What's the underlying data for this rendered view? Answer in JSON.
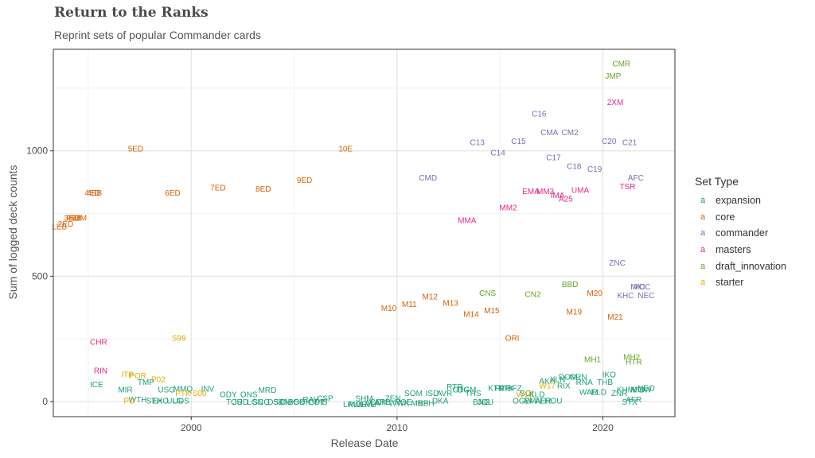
{
  "chart_data": {
    "type": "scatter",
    "title": "Return to the Ranks",
    "subtitle": "Reprint sets of popular Commander cards",
    "xlabel": "Release Date",
    "ylabel": "Sum of logged deck counts",
    "xlim": [
      1993.3,
      2023.5
    ],
    "ylim": [
      -60,
      1405
    ],
    "x_ticks": [
      2000,
      2010,
      2020
    ],
    "y_ticks": [
      0,
      500,
      1000
    ],
    "grid": true,
    "legend_title": "Set Type",
    "legend_position": "right",
    "series": [
      {
        "name": "expansion",
        "color": "#1b9e77",
        "points": [
          {
            "label": "ICE",
            "x": 1995.4,
            "y": 70
          },
          {
            "label": "MIR",
            "x": 1996.8,
            "y": 50
          },
          {
            "label": "TMP",
            "x": 1997.8,
            "y": 80
          },
          {
            "label": "WTH",
            "x": 1997.4,
            "y": 10
          },
          {
            "label": "STH",
            "x": 1998.2,
            "y": 5
          },
          {
            "label": "EXO",
            "x": 1998.5,
            "y": 5
          },
          {
            "label": "USG",
            "x": 1998.8,
            "y": 50
          },
          {
            "label": "ULG",
            "x": 1999.2,
            "y": 5
          },
          {
            "label": "UDS",
            "x": 1999.5,
            "y": 5
          },
          {
            "label": "MMQ",
            "x": 1999.6,
            "y": 52
          },
          {
            "label": "INV",
            "x": 2000.8,
            "y": 52
          },
          {
            "label": "ODY",
            "x": 2001.8,
            "y": 30
          },
          {
            "label": "ONS",
            "x": 2002.8,
            "y": 30
          },
          {
            "label": "TOR",
            "x": 2002.1,
            "y": 0
          },
          {
            "label": "JUD",
            "x": 2002.4,
            "y": 0
          },
          {
            "label": "LGN",
            "x": 2003.1,
            "y": 0
          },
          {
            "label": "SCG",
            "x": 2003.4,
            "y": 0
          },
          {
            "label": "MRD",
            "x": 2003.7,
            "y": 48
          },
          {
            "label": "DST",
            "x": 2004.1,
            "y": 0
          },
          {
            "label": "5DN",
            "x": 2004.4,
            "y": 0
          },
          {
            "label": "CHK",
            "x": 2004.7,
            "y": 0
          },
          {
            "label": "BOK",
            "x": 2005.1,
            "y": 0
          },
          {
            "label": "SOK",
            "x": 2005.4,
            "y": 0
          },
          {
            "label": "RAV",
            "x": 2005.8,
            "y": 10
          },
          {
            "label": "GPT",
            "x": 2006.1,
            "y": 0
          },
          {
            "label": "DIS",
            "x": 2006.3,
            "y": 0
          },
          {
            "label": "CSP",
            "x": 2006.5,
            "y": 15
          },
          {
            "label": "LRW",
            "x": 2007.8,
            "y": -10
          },
          {
            "label": "MOR",
            "x": 2008.1,
            "y": -10
          },
          {
            "label": "SHM",
            "x": 2008.4,
            "y": 15
          },
          {
            "label": "EVE",
            "x": 2008.6,
            "y": -10
          },
          {
            "label": "ALA",
            "x": 2008.8,
            "y": -5
          },
          {
            "label": "CON",
            "x": 2009.1,
            "y": 0
          },
          {
            "label": "ARB",
            "x": 2009.3,
            "y": 0
          },
          {
            "label": "ZEN",
            "x": 2009.8,
            "y": 15
          },
          {
            "label": "WWK",
            "x": 2010.1,
            "y": -5
          },
          {
            "label": "ROE",
            "x": 2010.3,
            "y": 0
          },
          {
            "label": "SOM",
            "x": 2010.8,
            "y": 35
          },
          {
            "label": "MBS",
            "x": 2011.1,
            "y": -5
          },
          {
            "label": "NPH",
            "x": 2011.4,
            "y": -5
          },
          {
            "label": "ISD",
            "x": 2011.7,
            "y": 35
          },
          {
            "label": "DKA",
            "x": 2012.1,
            "y": 5
          },
          {
            "label": "AVR",
            "x": 2012.3,
            "y": 35
          },
          {
            "label": "RTR",
            "x": 2012.8,
            "y": 60
          },
          {
            "label": "GTC",
            "x": 2013.1,
            "y": 50
          },
          {
            "label": "DGM",
            "x": 2013.4,
            "y": 50
          },
          {
            "label": "THS",
            "x": 2013.7,
            "y": 35
          },
          {
            "label": "BNG",
            "x": 2014.1,
            "y": 0
          },
          {
            "label": "JOU",
            "x": 2014.3,
            "y": 0
          },
          {
            "label": "KTK",
            "x": 2014.8,
            "y": 55
          },
          {
            "label": "FRF",
            "x": 2015.1,
            "y": 55
          },
          {
            "label": "DTK",
            "x": 2015.3,
            "y": 55
          },
          {
            "label": "BFZ",
            "x": 2015.7,
            "y": 55
          },
          {
            "label": "OGW",
            "x": 2016.1,
            "y": 5
          },
          {
            "label": "SOI",
            "x": 2016.3,
            "y": 35
          },
          {
            "label": "EMN",
            "x": 2016.6,
            "y": 5
          },
          {
            "label": "KLD",
            "x": 2016.8,
            "y": 30
          },
          {
            "label": "AER",
            "x": 2017.1,
            "y": 5
          },
          {
            "label": "AKH",
            "x": 2017.3,
            "y": 85
          },
          {
            "label": "HOU",
            "x": 2017.6,
            "y": 5
          },
          {
            "label": "XLN",
            "x": 2017.8,
            "y": 90
          },
          {
            "label": "RIX",
            "x": 2018.1,
            "y": 65
          },
          {
            "label": "DOM",
            "x": 2018.3,
            "y": 100
          },
          {
            "label": "GRN",
            "x": 2018.8,
            "y": 100
          },
          {
            "label": "RNA",
            "x": 2019.1,
            "y": 80
          },
          {
            "label": "WAR",
            "x": 2019.3,
            "y": 40
          },
          {
            "label": "ELD",
            "x": 2019.8,
            "y": 40
          },
          {
            "label": "THB",
            "x": 2020.1,
            "y": 80
          },
          {
            "label": "IKO",
            "x": 2020.3,
            "y": 110
          },
          {
            "label": "ZNR",
            "x": 2020.8,
            "y": 35
          },
          {
            "label": "KHM",
            "x": 2021.1,
            "y": 50
          },
          {
            "label": "STX",
            "x": 2021.3,
            "y": 0
          },
          {
            "label": "AFR",
            "x": 2021.5,
            "y": 10
          },
          {
            "label": "MID",
            "x": 2021.7,
            "y": 50
          },
          {
            "label": "VOW",
            "x": 2021.9,
            "y": 50
          },
          {
            "label": "NEO",
            "x": 2022.1,
            "y": 55
          }
        ]
      },
      {
        "name": "core",
        "color": "#d95f02",
        "points": [
          {
            "label": "LEB",
            "x": 1993.6,
            "y": 700
          },
          {
            "label": "2ED",
            "x": 1993.9,
            "y": 710
          },
          {
            "label": "3ED",
            "x": 1994.2,
            "y": 735
          },
          {
            "label": "FBB",
            "x": 1994.3,
            "y": 735
          },
          {
            "label": "SUM",
            "x": 1994.5,
            "y": 735
          },
          {
            "label": "4ED",
            "x": 1995.2,
            "y": 835
          },
          {
            "label": "4BB",
            "x": 1995.3,
            "y": 835
          },
          {
            "label": "5ED",
            "x": 1997.3,
            "y": 1010
          },
          {
            "label": "6ED",
            "x": 1999.1,
            "y": 835
          },
          {
            "label": "7ED",
            "x": 2001.3,
            "y": 855
          },
          {
            "label": "8ED",
            "x": 2003.5,
            "y": 850
          },
          {
            "label": "9ED",
            "x": 2005.5,
            "y": 885
          },
          {
            "label": "10E",
            "x": 2007.5,
            "y": 1010
          },
          {
            "label": "M10",
            "x": 2009.6,
            "y": 375
          },
          {
            "label": "M11",
            "x": 2010.6,
            "y": 390
          },
          {
            "label": "M12",
            "x": 2011.6,
            "y": 420
          },
          {
            "label": "M13",
            "x": 2012.6,
            "y": 395
          },
          {
            "label": "M14",
            "x": 2013.6,
            "y": 350
          },
          {
            "label": "M15",
            "x": 2014.6,
            "y": 365
          },
          {
            "label": "ORI",
            "x": 2015.6,
            "y": 255
          },
          {
            "label": "M19",
            "x": 2018.6,
            "y": 360
          },
          {
            "label": "M20",
            "x": 2019.6,
            "y": 435
          },
          {
            "label": "M21",
            "x": 2020.6,
            "y": 340
          }
        ]
      },
      {
        "name": "commander",
        "color": "#7570b3",
        "points": [
          {
            "label": "CMD",
            "x": 2011.5,
            "y": 895
          },
          {
            "label": "C13",
            "x": 2013.9,
            "y": 1035
          },
          {
            "label": "C14",
            "x": 2014.9,
            "y": 995
          },
          {
            "label": "C15",
            "x": 2015.9,
            "y": 1040
          },
          {
            "label": "C16",
            "x": 2016.9,
            "y": 1150
          },
          {
            "label": "CMA",
            "x": 2017.4,
            "y": 1075
          },
          {
            "label": "CM2",
            "x": 2018.4,
            "y": 1075
          },
          {
            "label": "C17",
            "x": 2017.6,
            "y": 975
          },
          {
            "label": "C18",
            "x": 2018.6,
            "y": 940
          },
          {
            "label": "C19",
            "x": 2019.6,
            "y": 930
          },
          {
            "label": "C20",
            "x": 2020.3,
            "y": 1040
          },
          {
            "label": "C21",
            "x": 2021.3,
            "y": 1035
          },
          {
            "label": "AFC",
            "x": 2021.6,
            "y": 895
          },
          {
            "label": "ZNC",
            "x": 2020.7,
            "y": 555
          },
          {
            "label": "KHC",
            "x": 2021.1,
            "y": 425
          },
          {
            "label": "MIC",
            "x": 2021.7,
            "y": 460
          },
          {
            "label": "VOC",
            "x": 2021.9,
            "y": 460
          },
          {
            "label": "NEC",
            "x": 2022.1,
            "y": 425
          }
        ]
      },
      {
        "name": "masters",
        "color": "#e7298a",
        "points": [
          {
            "label": "CHR",
            "x": 1995.5,
            "y": 240
          },
          {
            "label": "RIN",
            "x": 1995.6,
            "y": 125
          },
          {
            "label": "MMA",
            "x": 2013.4,
            "y": 725
          },
          {
            "label": "MM2",
            "x": 2015.4,
            "y": 775
          },
          {
            "label": "EMA",
            "x": 2016.5,
            "y": 840
          },
          {
            "label": "MM3",
            "x": 2017.2,
            "y": 840
          },
          {
            "label": "IMA",
            "x": 2017.8,
            "y": 825
          },
          {
            "label": "A25",
            "x": 2018.2,
            "y": 810
          },
          {
            "label": "UMA",
            "x": 2018.9,
            "y": 845
          },
          {
            "label": "2XM",
            "x": 2020.6,
            "y": 1195
          },
          {
            "label": "TSR",
            "x": 2021.2,
            "y": 860
          }
        ]
      },
      {
        "name": "draft_innovation",
        "color": "#66a61e",
        "points": [
          {
            "label": "CNS",
            "x": 2014.4,
            "y": 435
          },
          {
            "label": "CN2",
            "x": 2016.6,
            "y": 430
          },
          {
            "label": "BBD",
            "x": 2018.4,
            "y": 470
          },
          {
            "label": "MH1",
            "x": 2019.5,
            "y": 170
          },
          {
            "label": "JMP",
            "x": 2020.5,
            "y": 1300
          },
          {
            "label": "CMR",
            "x": 2020.9,
            "y": 1350
          },
          {
            "label": "MH2",
            "x": 2021.4,
            "y": 180
          },
          {
            "label": "HTR",
            "x": 2021.5,
            "y": 160
          }
        ]
      },
      {
        "name": "starter",
        "color": "#e6ab02",
        "points": [
          {
            "label": "ITP",
            "x": 1996.9,
            "y": 110
          },
          {
            "label": "POR",
            "x": 1997.4,
            "y": 105
          },
          {
            "label": "P02",
            "x": 1998.4,
            "y": 90
          },
          {
            "label": "PTK",
            "x": 1999.6,
            "y": 35
          },
          {
            "label": "S99",
            "x": 1999.4,
            "y": 255
          },
          {
            "label": "S00",
            "x": 2000.4,
            "y": 35
          },
          {
            "label": "PO",
            "x": 1997.0,
            "y": 5
          },
          {
            "label": "W16",
            "x": 2016.2,
            "y": 30
          },
          {
            "label": "W17",
            "x": 2017.3,
            "y": 65
          }
        ]
      }
    ]
  },
  "colors": {
    "panel_border": "#333333",
    "grid_major": "#e4e4e4",
    "grid_minor": "#f2f2f2",
    "axis_text": "#4d4d4d"
  }
}
